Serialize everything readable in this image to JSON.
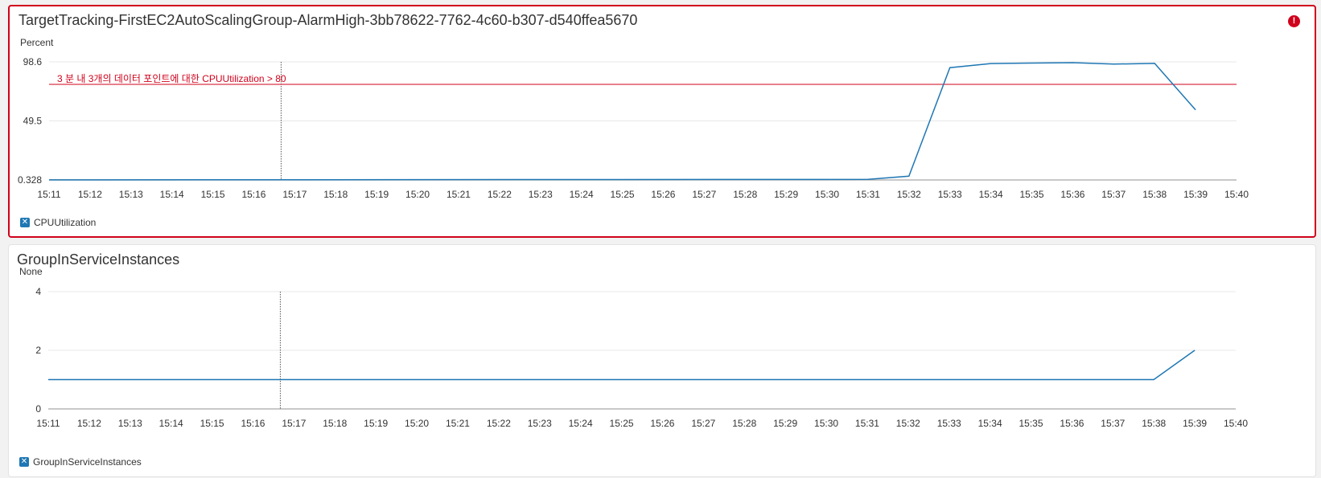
{
  "chart_data": [
    {
      "type": "line",
      "title": "TargetTracking-FirstEC2AutoScalingGroup-AlarmHigh-3bb78622-7762-4c60-b307-d540ffea5670",
      "ylabel": "Percent",
      "ylim": [
        0.328,
        98.6
      ],
      "yticks": [
        "98.6",
        "49.5",
        "0.328"
      ],
      "yticks_values": [
        98.6,
        49.5,
        0.328
      ],
      "x_ticks": [
        "15:11",
        "15:12",
        "15:13",
        "15:14",
        "15:15",
        "15:16",
        "15:17",
        "15:18",
        "15:19",
        "15:20",
        "15:21",
        "15:22",
        "15:23",
        "15:24",
        "15:25",
        "15:26",
        "15:27",
        "15:28",
        "15:29",
        "15:30",
        "15:31",
        "15:32",
        "15:33",
        "15:34",
        "15:35",
        "15:36",
        "15:37",
        "15:38",
        "15:39",
        "15:40"
      ],
      "series": [
        {
          "name": "CPUUtilization",
          "color": "#1f77b4",
          "x": [
            "15:11",
            "15:31",
            "15:32",
            "15:33",
            "15:34",
            "15:35",
            "15:36",
            "15:37",
            "15:38",
            "15:39"
          ],
          "values": [
            0.4,
            0.8,
            3.5,
            93.8,
            97.2,
            97.6,
            97.9,
            96.7,
            97.3,
            58.6
          ]
        }
      ],
      "threshold": {
        "value": 79.9,
        "label": "3 분 내 3개의 데이터 포인트에 대한 CPUUtilization > 80",
        "color": "#d0021b"
      },
      "marker_x": "15:16:40",
      "alarm": true
    },
    {
      "type": "line",
      "title": "GroupInServiceInstances",
      "ylabel": "None",
      "ylim": [
        0,
        4
      ],
      "yticks": [
        "4",
        "2",
        "0"
      ],
      "yticks_values": [
        4,
        2,
        0
      ],
      "x_ticks": [
        "15:11",
        "15:12",
        "15:13",
        "15:14",
        "15:15",
        "15:16",
        "15:17",
        "15:18",
        "15:19",
        "15:20",
        "15:21",
        "15:22",
        "15:23",
        "15:24",
        "15:25",
        "15:26",
        "15:27",
        "15:28",
        "15:29",
        "15:30",
        "15:31",
        "15:32",
        "15:33",
        "15:34",
        "15:35",
        "15:36",
        "15:37",
        "15:38",
        "15:39",
        "15:40"
      ],
      "series": [
        {
          "name": "GroupInServiceInstances",
          "color": "#1f77b4",
          "x": [
            "15:11",
            "15:38",
            "15:39"
          ],
          "values": [
            1,
            1,
            2
          ]
        }
      ],
      "marker_x": "15:16:40",
      "alarm": false
    }
  ],
  "icons": {
    "alarm": "alarm-exclamation-icon",
    "legend_toggle": "legend-checkbox-icon"
  },
  "alarm_icon_glyph": "!",
  "legend_check_glyph": "✕"
}
